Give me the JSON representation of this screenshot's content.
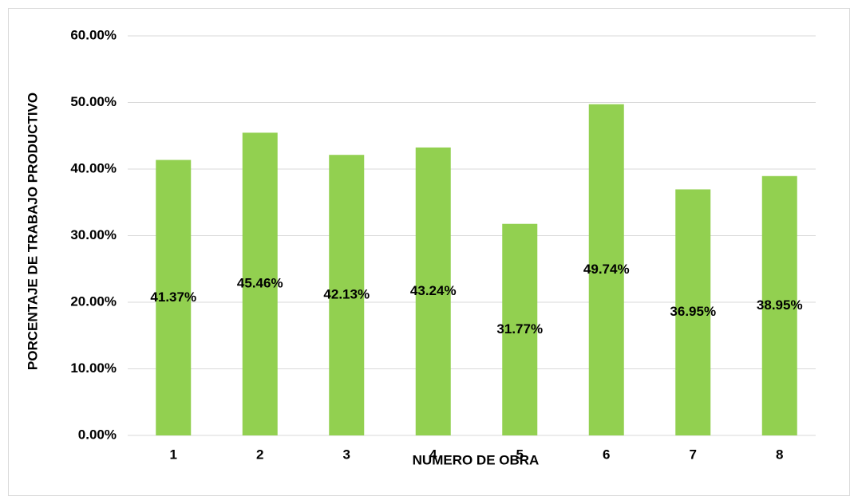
{
  "chart_data": {
    "type": "bar",
    "x_label": "NUMERO DE OBRA",
    "y_label": "PORCENTAJE DE TRABAJO PRODUCTIVO",
    "categories": [
      "1",
      "2",
      "3",
      "4",
      "5",
      "6",
      "7",
      "8"
    ],
    "values": [
      41.37,
      45.46,
      42.13,
      43.24,
      31.77,
      49.74,
      36.95,
      38.95
    ],
    "value_labels": [
      "41.37%",
      "45.46%",
      "42.13%",
      "43.24%",
      "31.77%",
      "49.74%",
      "36.95%",
      "38.95%"
    ],
    "color": "#92d050",
    "ylim": [
      0,
      60
    ],
    "yticks": [
      {
        "value": 0,
        "label": "0.00%"
      },
      {
        "value": 10,
        "label": "10.00%"
      },
      {
        "value": 20,
        "label": "20.00%"
      },
      {
        "value": 30,
        "label": "30.00%"
      },
      {
        "value": 40,
        "label": "40.00%"
      },
      {
        "value": 50,
        "label": "50.00%"
      },
      {
        "value": 60,
        "label": "60.00%"
      }
    ],
    "grid": true
  }
}
